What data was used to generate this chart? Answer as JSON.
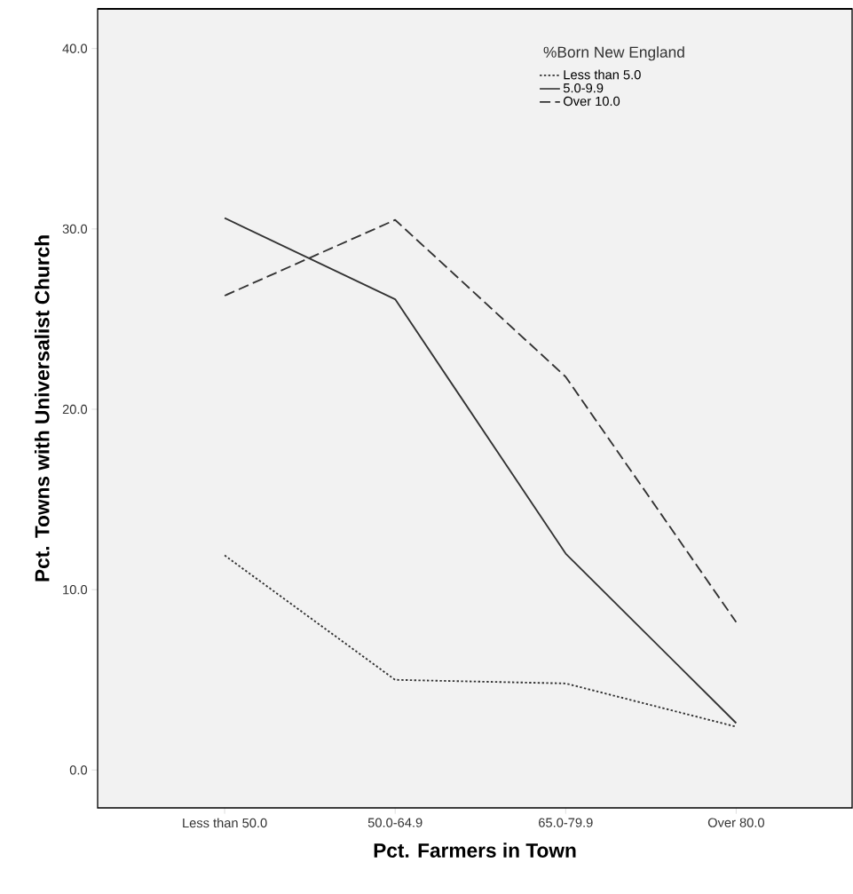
{
  "chart_data": {
    "type": "line",
    "xlabel": "Pct. Farmers in Town",
    "ylabel": "Pct. Towns with Universalist Church",
    "legend_title": "%Born New England",
    "legend": "top right",
    "grid": false,
    "marker": "none",
    "categories": [
      "Less than 50.0",
      "50.0-64.9",
      "65.0-79.9",
      "Over 80.0"
    ],
    "ylim": [
      -2.1,
      42.2
    ],
    "yticks": [
      {
        "value": 0,
        "label": "0.0"
      },
      {
        "value": 10,
        "label": "10.0"
      },
      {
        "value": 20,
        "label": "20.0"
      },
      {
        "value": 30,
        "label": "30.0"
      },
      {
        "value": 40,
        "label": "40.0"
      }
    ],
    "series": [
      {
        "name": "Less than 5.0",
        "color": "#333333",
        "line_style": "dotted",
        "values": [
          11.9,
          5.0,
          4.8,
          2.4
        ]
      },
      {
        "name": "5.0-9.9",
        "color": "#333333",
        "line_style": "solid",
        "values": [
          30.6,
          26.1,
          12.0,
          2.6
        ]
      },
      {
        "name": "Over 10.0",
        "color": "#333333",
        "line_style": "dashed",
        "values": [
          26.3,
          30.5,
          21.8,
          8.2
        ]
      }
    ]
  }
}
